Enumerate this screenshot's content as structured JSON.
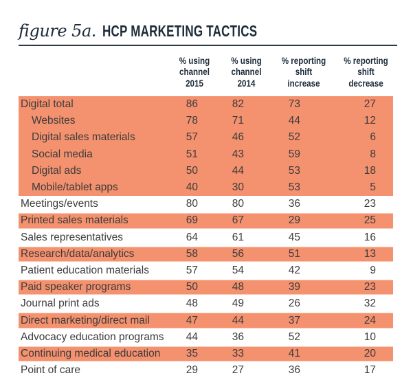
{
  "figure": {
    "label": "figure 5a.",
    "title": "HCP MARKETING TACTICS"
  },
  "colors": {
    "highlight": "#F4916E",
    "heading_text": "#1D2B39",
    "body_text": "#3C3C3C",
    "rule": "#2E3844"
  },
  "chart_data": {
    "type": "table",
    "title": "HCP MARKETING TACTICS",
    "columns": [
      {
        "id": "pct-using-2015",
        "label": "% using channel 2015",
        "lines": [
          "% using",
          "channel",
          "2015"
        ]
      },
      {
        "id": "pct-using-2014",
        "label": "% using channel 2014",
        "lines": [
          "% using",
          "channel",
          "2014"
        ]
      },
      {
        "id": "pct-shift-increase",
        "label": "% reporting shift increase",
        "lines": [
          "% reporting",
          "shift",
          "increase"
        ]
      },
      {
        "id": "pct-shift-decrease",
        "label": "% reporting shift decrease",
        "lines": [
          "% reporting",
          "shift",
          "decrease"
        ]
      }
    ],
    "rows": [
      {
        "label": "Digital total",
        "indent": false,
        "highlight": true,
        "block": true,
        "values": [
          86,
          82,
          73,
          27
        ]
      },
      {
        "label": "Websites",
        "indent": true,
        "highlight": true,
        "block": true,
        "values": [
          78,
          71,
          44,
          12
        ]
      },
      {
        "label": "Digital sales materials",
        "indent": true,
        "highlight": true,
        "block": true,
        "values": [
          57,
          46,
          52,
          6
        ]
      },
      {
        "label": "Social media",
        "indent": true,
        "highlight": true,
        "block": true,
        "values": [
          51,
          43,
          59,
          8
        ]
      },
      {
        "label": "Digital ads",
        "indent": true,
        "highlight": true,
        "block": true,
        "values": [
          50,
          44,
          53,
          18
        ]
      },
      {
        "label": "Mobile/tablet apps",
        "indent": true,
        "highlight": true,
        "block": true,
        "values": [
          40,
          30,
          53,
          5
        ]
      },
      {
        "label": "Meetings/events",
        "indent": false,
        "highlight": false,
        "block": false,
        "values": [
          80,
          80,
          36,
          23
        ]
      },
      {
        "label": "Printed sales materials",
        "indent": false,
        "highlight": true,
        "block": false,
        "values": [
          69,
          67,
          29,
          25
        ]
      },
      {
        "label": "Sales representatives",
        "indent": false,
        "highlight": false,
        "block": false,
        "values": [
          64,
          61,
          45,
          16
        ]
      },
      {
        "label": "Research/data/analytics",
        "indent": false,
        "highlight": true,
        "block": false,
        "values": [
          58,
          56,
          51,
          13
        ]
      },
      {
        "label": "Patient education materials",
        "indent": false,
        "highlight": false,
        "block": false,
        "values": [
          57,
          54,
          42,
          9
        ]
      },
      {
        "label": "Paid speaker programs",
        "indent": false,
        "highlight": true,
        "block": false,
        "values": [
          50,
          48,
          39,
          23
        ]
      },
      {
        "label": "Journal print ads",
        "indent": false,
        "highlight": false,
        "block": false,
        "values": [
          48,
          49,
          26,
          32
        ]
      },
      {
        "label": "Direct marketing/direct mail",
        "indent": false,
        "highlight": true,
        "block": false,
        "values": [
          47,
          44,
          37,
          24
        ]
      },
      {
        "label": "Advocacy education programs",
        "indent": false,
        "highlight": false,
        "block": false,
        "values": [
          44,
          36,
          52,
          10
        ]
      },
      {
        "label": "Continuing medical education",
        "indent": false,
        "highlight": true,
        "block": false,
        "values": [
          35,
          33,
          41,
          20
        ]
      },
      {
        "label": "Point of care",
        "indent": false,
        "highlight": false,
        "block": false,
        "values": [
          29,
          27,
          36,
          17
        ]
      }
    ]
  }
}
